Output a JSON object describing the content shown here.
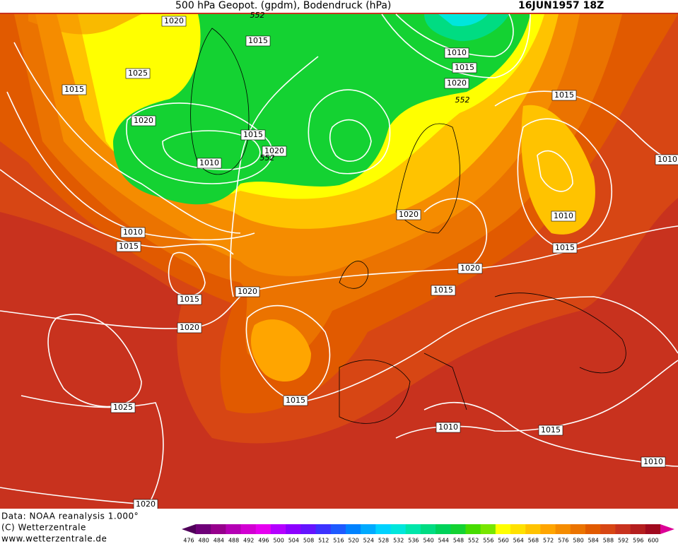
{
  "header": {
    "title": "500 hPa Geopot. (gpdm), Bodendruck (hPa)",
    "date": "16JUN1957 18Z"
  },
  "map": {
    "isobar_labels": [
      "1020",
      "1015",
      "1025",
      "1015",
      "1010",
      "1015",
      "1020",
      "552",
      "1015",
      "1020",
      "1015",
      "1020",
      "1010",
      "552",
      "1010",
      "1020",
      "1010",
      "1010",
      "1015",
      "1015",
      "1020",
      "1020",
      "1015",
      "1015",
      "1020",
      "1015",
      "1025",
      "1010",
      "1015",
      "1010",
      "1020",
      "552"
    ]
  },
  "footer": {
    "data": "Data: NOAA reanalysis 1.000°",
    "copyright": "(C) Wetterzentrale",
    "url": "www.wetterzentrale.de"
  },
  "colorbar": {
    "labels": [
      476,
      480,
      484,
      488,
      492,
      496,
      500,
      504,
      508,
      512,
      516,
      520,
      524,
      528,
      532,
      536,
      540,
      544,
      548,
      552,
      556,
      560,
      564,
      568,
      572,
      576,
      580,
      584,
      588,
      592,
      596,
      600
    ],
    "colors": [
      "#6e0078",
      "#96008c",
      "#b400b4",
      "#d200d2",
      "#e600f0",
      "#b400ff",
      "#8c00ff",
      "#6414ff",
      "#3c32ff",
      "#1e5aff",
      "#0082ff",
      "#00aaff",
      "#00d2ff",
      "#00e6dc",
      "#00e6aa",
      "#00dc82",
      "#00d25a",
      "#14d232",
      "#46dc00",
      "#78e600",
      "#ffff00",
      "#ffe100",
      "#ffc300",
      "#ffa500",
      "#f58c00",
      "#eb7300",
      "#e15a00",
      "#d74614",
      "#c8321e",
      "#b41e1e",
      "#a00a1e"
    ],
    "low_color": "#50005a",
    "high_color": "#dc0096"
  }
}
